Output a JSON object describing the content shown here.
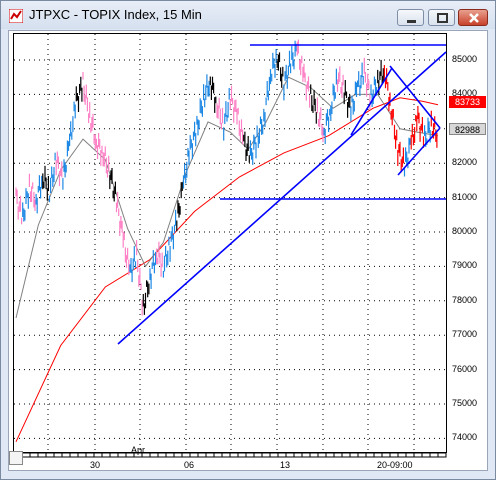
{
  "window": {
    "title": "JTPXC - TOPIX Index, 15 Min"
  },
  "colors": {
    "up_bars": "#1e88e5",
    "down_bars": "#ff82c6",
    "dark_bars": "#000000",
    "red_bars": "#ff0000",
    "trendlines": "#0000ff",
    "ma_fast": "#808080",
    "ma_slow": "#ff0000"
  },
  "price_tags": {
    "current": "83733",
    "reference": "82988"
  },
  "chart_data": {
    "type": "line",
    "y_ticks": [
      "85000",
      "84000",
      "83000",
      "82000",
      "81000",
      "80000",
      "79000",
      "78000",
      "77000",
      "76000",
      "75000",
      "74000"
    ],
    "x_ticks": [
      "30",
      "Apr",
      "06",
      "13",
      "20-09:00"
    ],
    "ylim": [
      73500,
      85500
    ],
    "grid": true,
    "price_series": [
      {
        "x": 0,
        "y": 81000
      },
      {
        "x": 3,
        "y": 80400
      },
      {
        "x": 6,
        "y": 81300
      },
      {
        "x": 9,
        "y": 80900
      },
      {
        "x": 12,
        "y": 81600
      },
      {
        "x": 15,
        "y": 81200
      },
      {
        "x": 18,
        "y": 82100
      },
      {
        "x": 21,
        "y": 81500
      },
      {
        "x": 24,
        "y": 82600
      },
      {
        "x": 27,
        "y": 83800
      },
      {
        "x": 30,
        "y": 84300
      },
      {
        "x": 33,
        "y": 83400
      },
      {
        "x": 36,
        "y": 82600
      },
      {
        "x": 39,
        "y": 82300
      },
      {
        "x": 42,
        "y": 81700
      },
      {
        "x": 45,
        "y": 80900
      },
      {
        "x": 48,
        "y": 79800
      },
      {
        "x": 51,
        "y": 78800
      },
      {
        "x": 54,
        "y": 79300
      },
      {
        "x": 57,
        "y": 77800
      },
      {
        "x": 60,
        "y": 78700
      },
      {
        "x": 63,
        "y": 79400
      },
      {
        "x": 66,
        "y": 79000
      },
      {
        "x": 69,
        "y": 79600
      },
      {
        "x": 72,
        "y": 80300
      },
      {
        "x": 75,
        "y": 81400
      },
      {
        "x": 78,
        "y": 82400
      },
      {
        "x": 81,
        "y": 83000
      },
      {
        "x": 84,
        "y": 83900
      },
      {
        "x": 87,
        "y": 84400
      },
      {
        "x": 90,
        "y": 83700
      },
      {
        "x": 93,
        "y": 83100
      },
      {
        "x": 96,
        "y": 83900
      },
      {
        "x": 99,
        "y": 83400
      },
      {
        "x": 102,
        "y": 82600
      },
      {
        "x": 105,
        "y": 82200
      },
      {
        "x": 108,
        "y": 82700
      },
      {
        "x": 111,
        "y": 83300
      },
      {
        "x": 114,
        "y": 84600
      },
      {
        "x": 117,
        "y": 85100
      },
      {
        "x": 120,
        "y": 84300
      },
      {
        "x": 123,
        "y": 84900
      },
      {
        "x": 126,
        "y": 85300
      },
      {
        "x": 129,
        "y": 84500
      },
      {
        "x": 132,
        "y": 83900
      },
      {
        "x": 135,
        "y": 83500
      },
      {
        "x": 138,
        "y": 82900
      },
      {
        "x": 141,
        "y": 83600
      },
      {
        "x": 144,
        "y": 84500
      },
      {
        "x": 147,
        "y": 84100
      },
      {
        "x": 150,
        "y": 83500
      },
      {
        "x": 153,
        "y": 84200
      },
      {
        "x": 156,
        "y": 84600
      },
      {
        "x": 159,
        "y": 83900
      },
      {
        "x": 162,
        "y": 84400
      },
      {
        "x": 165,
        "y": 84700
      },
      {
        "x": 168,
        "y": 83600
      },
      {
        "x": 171,
        "y": 82400
      },
      {
        "x": 174,
        "y": 81900
      },
      {
        "x": 177,
        "y": 82600
      },
      {
        "x": 180,
        "y": 83300
      },
      {
        "x": 183,
        "y": 82700
      },
      {
        "x": 186,
        "y": 83100
      },
      {
        "x": 189,
        "y": 82800
      }
    ],
    "ma_fast": [
      {
        "x": 0,
        "y": 77500
      },
      {
        "x": 10,
        "y": 80200
      },
      {
        "x": 20,
        "y": 81800
      },
      {
        "x": 30,
        "y": 82700
      },
      {
        "x": 40,
        "y": 82100
      },
      {
        "x": 50,
        "y": 80100
      },
      {
        "x": 58,
        "y": 79000
      },
      {
        "x": 66,
        "y": 79700
      },
      {
        "x": 76,
        "y": 81700
      },
      {
        "x": 86,
        "y": 83200
      },
      {
        "x": 96,
        "y": 82900
      },
      {
        "x": 104,
        "y": 82400
      },
      {
        "x": 112,
        "y": 83200
      },
      {
        "x": 122,
        "y": 84500
      },
      {
        "x": 132,
        "y": 84200
      },
      {
        "x": 142,
        "y": 83600
      },
      {
        "x": 152,
        "y": 84000
      },
      {
        "x": 162,
        "y": 84000
      },
      {
        "x": 172,
        "y": 83000
      },
      {
        "x": 180,
        "y": 82900
      },
      {
        "x": 189,
        "y": 82800
      }
    ],
    "ma_slow": [
      {
        "x": 0,
        "y": 73900
      },
      {
        "x": 20,
        "y": 76700
      },
      {
        "x": 40,
        "y": 78400
      },
      {
        "x": 60,
        "y": 79200
      },
      {
        "x": 80,
        "y": 80600
      },
      {
        "x": 100,
        "y": 81600
      },
      {
        "x": 120,
        "y": 82300
      },
      {
        "x": 140,
        "y": 82800
      },
      {
        "x": 160,
        "y": 83600
      },
      {
        "x": 172,
        "y": 83900
      },
      {
        "x": 182,
        "y": 83800
      },
      {
        "x": 189,
        "y": 83700
      }
    ]
  }
}
